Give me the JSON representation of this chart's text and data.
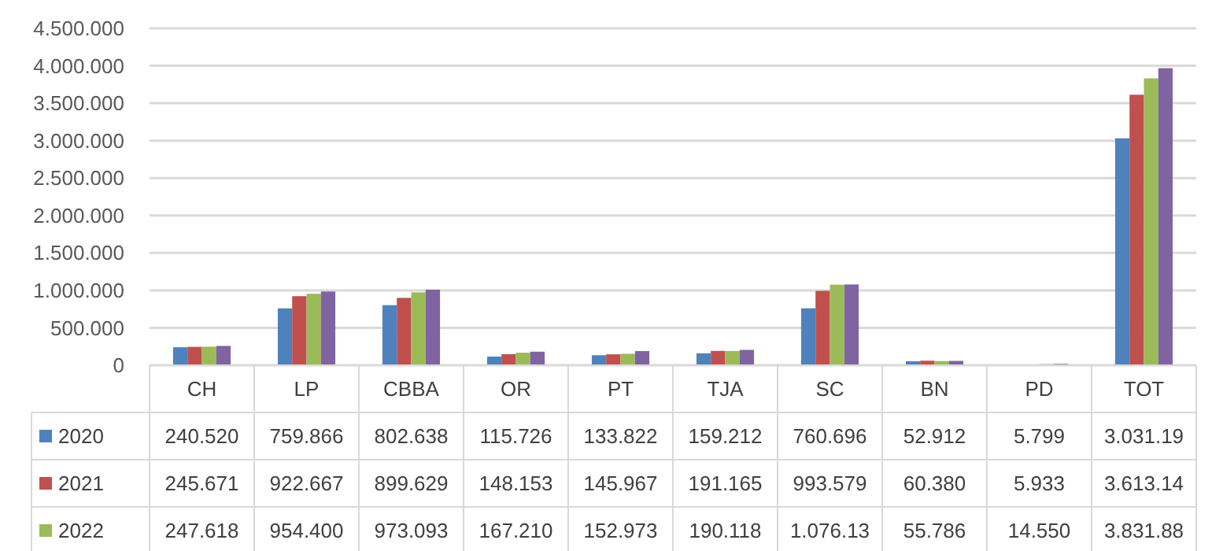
{
  "chart_data": {
    "type": "bar",
    "categories": [
      "CH",
      "LP",
      "CBBA",
      "OR",
      "PT",
      "TJA",
      "SC",
      "BN",
      "PD",
      "TOT"
    ],
    "series": [
      {
        "name": "2020",
        "color": "#4f81bd",
        "values": [
          240520,
          759866,
          802638,
          115726,
          133822,
          159212,
          760696,
          52912,
          5799,
          3031190
        ],
        "value_labels": [
          "240.520",
          "759.866",
          "802.638",
          "115.726",
          "133.822",
          "159.212",
          "760.696",
          "52.912",
          "5.799",
          "3.031.19"
        ]
      },
      {
        "name": "2021",
        "color": "#c0504d",
        "values": [
          245671,
          922667,
          899629,
          148153,
          145967,
          191165,
          993579,
          60380,
          5933,
          3613140
        ],
        "value_labels": [
          "245.671",
          "922.667",
          "899.629",
          "148.153",
          "145.967",
          "191.165",
          "993.579",
          "60.380",
          "5.933",
          "3.613.14"
        ]
      },
      {
        "name": "2022",
        "color": "#9bbb59",
        "values": [
          247618,
          954400,
          973093,
          167210,
          152973,
          190118,
          1076130,
          55786,
          14550,
          3831880
        ],
        "value_labels": [
          "247.618",
          "954.400",
          "973.093",
          "167.210",
          "152.973",
          "190.118",
          "1.076.13",
          "55.786",
          "14.550",
          "3.831.88"
        ]
      },
      {
        "color": "#8064a2",
        "values": [
          258000,
          985000,
          1009000,
          181000,
          189000,
          205000,
          1079000,
          58000,
          18000,
          3968000
        ]
      }
    ],
    "ylim": [
      0,
      4500000
    ],
    "yticks": [
      {
        "value": 0,
        "label": "0"
      },
      {
        "value": 500000,
        "label": "500.000"
      },
      {
        "value": 1000000,
        "label": "1.000.000"
      },
      {
        "value": 1500000,
        "label": "1.500.000"
      },
      {
        "value": 2000000,
        "label": "2.000.000"
      },
      {
        "value": 2500000,
        "label": "2.500.000"
      },
      {
        "value": 3000000,
        "label": "3.000.000"
      },
      {
        "value": 3500000,
        "label": "3.500.000"
      },
      {
        "value": 4000000,
        "label": "4.000.000"
      },
      {
        "value": 4500000,
        "label": "4.500.000"
      }
    ],
    "grid": "y",
    "legend": "bottom"
  }
}
